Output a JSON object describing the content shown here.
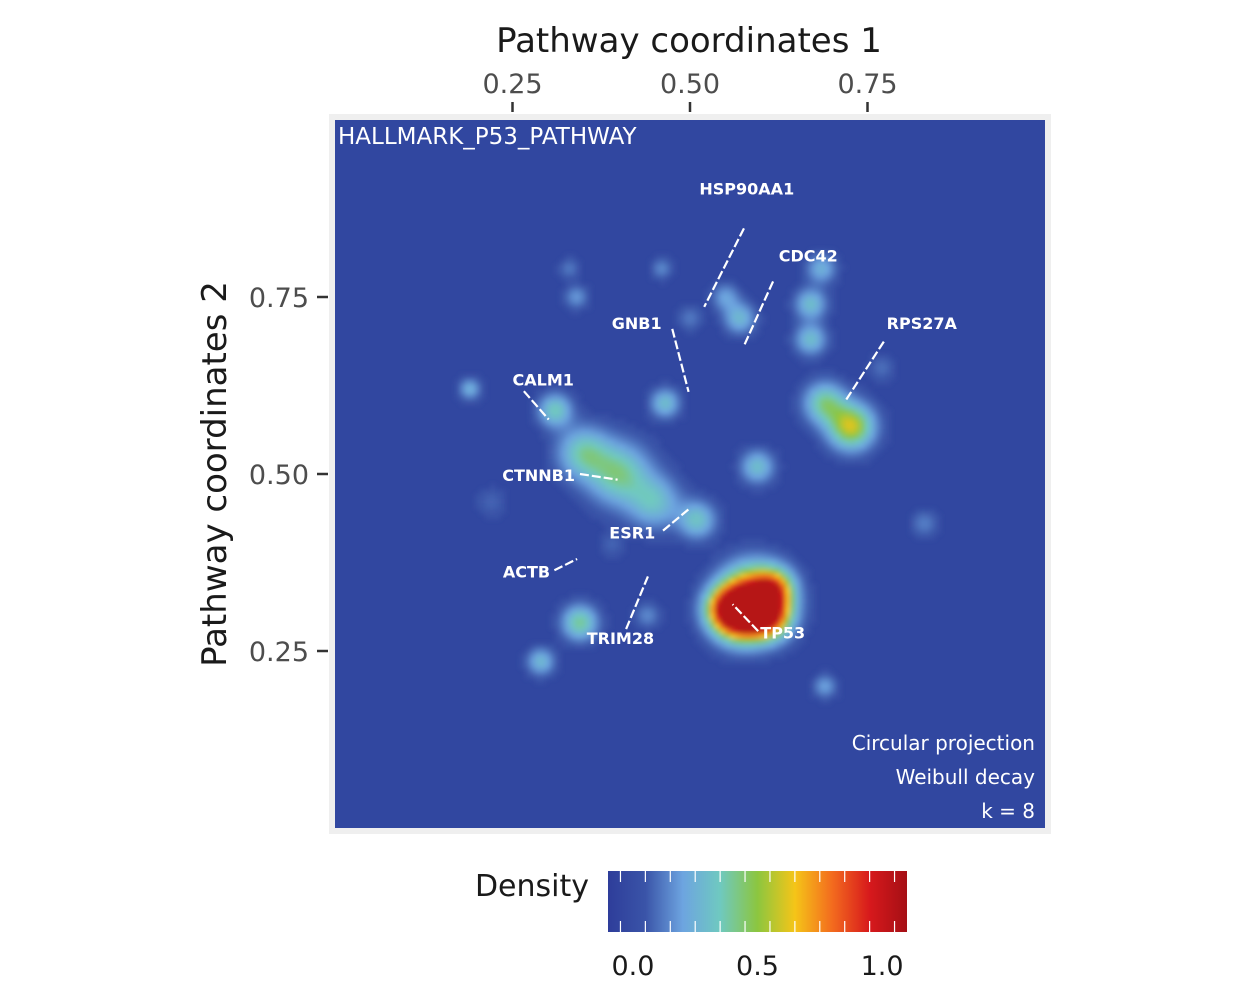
{
  "chart_data": {
    "type": "heatmap",
    "title": "HALLMARK_P53_PATHWAY",
    "xlabel": "Pathway coordinates 1",
    "ylabel": "Pathway coordinates 2",
    "xlim": [
      0.0,
      1.0
    ],
    "ylim": [
      0.0,
      1.0
    ],
    "x_axis_position": "top",
    "x_ticks": [
      0.25,
      0.5,
      0.75
    ],
    "x_tick_labels": [
      "0.25",
      "0.50",
      "0.75"
    ],
    "y_ticks": [
      0.25,
      0.5,
      0.75
    ],
    "y_tick_labels": [
      "0.25",
      "0.50",
      "0.75"
    ],
    "annotation_lines": [
      "Circular projection",
      "Weibull decay",
      "k = 8"
    ],
    "legend": {
      "title": "Density",
      "position": "bottom",
      "range": [
        -0.1,
        1.1
      ],
      "ticks": [
        0.0,
        0.5,
        1.0
      ],
      "tick_labels": [
        "0.0",
        "0.5",
        "1.0"
      ],
      "colors": [
        "#2e3d9a",
        "#3a54a8",
        "#6da4e0",
        "#6fc9c0",
        "#8cc63f",
        "#f5c518",
        "#f36b1e",
        "#d7191c",
        "#a50f15"
      ]
    },
    "background_color": "#3147a0",
    "hotspots": [
      {
        "x": 0.59,
        "y": 0.325,
        "density": 1.0,
        "spread": 0.03
      },
      {
        "x": 0.57,
        "y": 0.3,
        "density": 0.9,
        "spread": 0.025
      },
      {
        "x": 0.61,
        "y": 0.3,
        "density": 0.75,
        "spread": 0.022
      },
      {
        "x": 0.727,
        "y": 0.567,
        "density": 0.6,
        "spread": 0.022
      },
      {
        "x": 0.69,
        "y": 0.6,
        "density": 0.4,
        "spread": 0.02
      },
      {
        "x": 0.4,
        "y": 0.5,
        "density": 0.4,
        "spread": 0.03
      },
      {
        "x": 0.35,
        "y": 0.53,
        "density": 0.35,
        "spread": 0.025
      },
      {
        "x": 0.45,
        "y": 0.46,
        "density": 0.3,
        "spread": 0.025
      },
      {
        "x": 0.51,
        "y": 0.435,
        "density": 0.32,
        "spread": 0.018
      },
      {
        "x": 0.595,
        "y": 0.51,
        "density": 0.3,
        "spread": 0.016
      },
      {
        "x": 0.31,
        "y": 0.59,
        "density": 0.35,
        "spread": 0.016
      },
      {
        "x": 0.345,
        "y": 0.29,
        "density": 0.4,
        "spread": 0.017
      },
      {
        "x": 0.29,
        "y": 0.235,
        "density": 0.28,
        "spread": 0.013
      },
      {
        "x": 0.465,
        "y": 0.6,
        "density": 0.3,
        "spread": 0.014
      },
      {
        "x": 0.67,
        "y": 0.74,
        "density": 0.3,
        "spread": 0.015
      },
      {
        "x": 0.67,
        "y": 0.69,
        "density": 0.3,
        "spread": 0.015
      },
      {
        "x": 0.685,
        "y": 0.79,
        "density": 0.25,
        "spread": 0.014
      },
      {
        "x": 0.57,
        "y": 0.72,
        "density": 0.28,
        "spread": 0.015
      },
      {
        "x": 0.55,
        "y": 0.75,
        "density": 0.2,
        "spread": 0.013
      },
      {
        "x": 0.19,
        "y": 0.62,
        "density": 0.25,
        "spread": 0.01
      },
      {
        "x": 0.34,
        "y": 0.75,
        "density": 0.18,
        "spread": 0.011
      },
      {
        "x": 0.46,
        "y": 0.79,
        "density": 0.15,
        "spread": 0.01
      },
      {
        "x": 0.33,
        "y": 0.79,
        "density": 0.12,
        "spread": 0.01
      },
      {
        "x": 0.69,
        "y": 0.2,
        "density": 0.2,
        "spread": 0.011
      },
      {
        "x": 0.83,
        "y": 0.43,
        "density": 0.13,
        "spread": 0.013
      },
      {
        "x": 0.55,
        "y": 0.31,
        "density": 0.5,
        "spread": 0.02
      },
      {
        "x": 0.62,
        "y": 0.34,
        "density": 0.45,
        "spread": 0.018
      },
      {
        "x": 0.44,
        "y": 0.3,
        "density": 0.15,
        "spread": 0.012
      },
      {
        "x": 0.5,
        "y": 0.72,
        "density": 0.12,
        "spread": 0.012
      },
      {
        "x": 0.22,
        "y": 0.46,
        "density": 0.08,
        "spread": 0.015
      },
      {
        "x": 0.77,
        "y": 0.65,
        "density": 0.1,
        "spread": 0.013
      },
      {
        "x": 0.39,
        "y": 0.4,
        "density": 0.08,
        "spread": 0.012
      }
    ],
    "gene_labels": [
      {
        "name": "HSP90AA1",
        "x": 0.58,
        "y": 0.895,
        "anchor": "middle",
        "line": [
          0.576,
          0.847,
          0.52,
          0.736
        ]
      },
      {
        "name": "CDC42",
        "x": 0.625,
        "y": 0.8,
        "anchor": "start",
        "line": [
          0.617,
          0.772,
          0.576,
          0.681
        ]
      },
      {
        "name": "GNB1",
        "x": 0.46,
        "y": 0.705,
        "anchor": "end",
        "line": [
          0.475,
          0.705,
          0.498,
          0.616
        ]
      },
      {
        "name": "CALM1",
        "x": 0.25,
        "y": 0.625,
        "anchor": "start",
        "line": [
          0.266,
          0.617,
          0.301,
          0.577
        ]
      },
      {
        "name": "RPS27A",
        "x": 0.777,
        "y": 0.705,
        "anchor": "start",
        "line": [
          0.773,
          0.687,
          0.72,
          0.605
        ]
      },
      {
        "name": "CTNNB1",
        "x": 0.338,
        "y": 0.49,
        "anchor": "end",
        "line": [
          0.345,
          0.5,
          0.398,
          0.492
        ]
      },
      {
        "name": "ESR1",
        "x": 0.451,
        "y": 0.409,
        "anchor": "end",
        "line": [
          0.462,
          0.42,
          0.499,
          0.451
        ]
      },
      {
        "name": "ACTB",
        "x": 0.303,
        "y": 0.354,
        "anchor": "end",
        "line": [
          0.309,
          0.364,
          0.341,
          0.38
        ]
      },
      {
        "name": "TRIM28",
        "x": 0.402,
        "y": 0.26,
        "anchor": "middle",
        "line": [
          0.41,
          0.281,
          0.441,
          0.356
        ]
      },
      {
        "name": "TP53",
        "x": 0.599,
        "y": 0.268,
        "anchor": "start",
        "line": [
          0.596,
          0.278,
          0.56,
          0.316
        ]
      }
    ]
  }
}
